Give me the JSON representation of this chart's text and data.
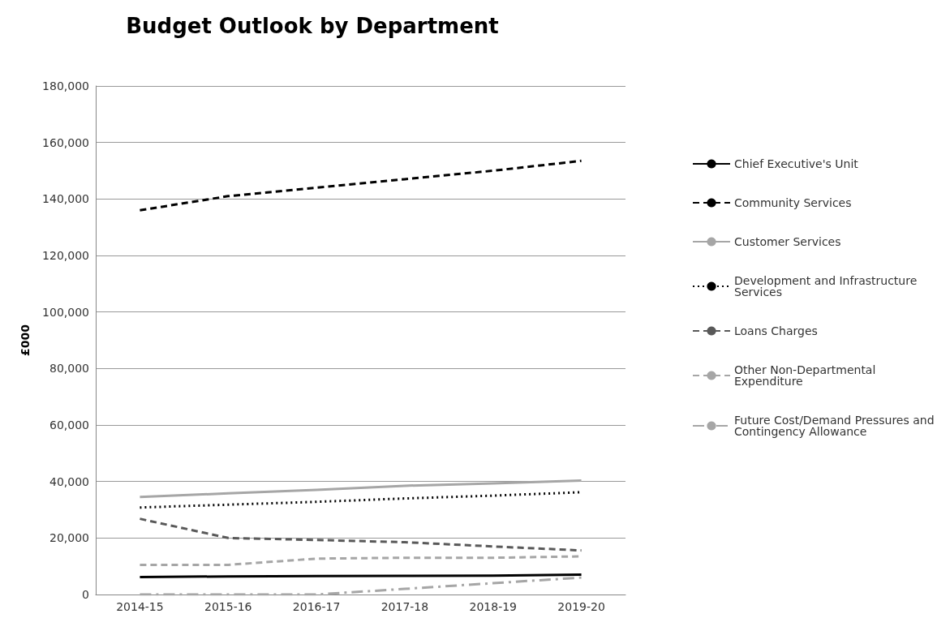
{
  "chart_data": {
    "type": "line",
    "title": "Budget Outlook by Department",
    "ylabel": "£000",
    "categories": [
      "2014-15",
      "2015-16",
      "2016-17",
      "2017-18",
      "2018-19",
      "2019-20"
    ],
    "series": [
      {
        "name": "Chief Executive's Unit",
        "color": "#000000",
        "line_style": "solid",
        "values": [
          6200,
          6400,
          6500,
          6600,
          6700,
          7000
        ]
      },
      {
        "name": "Community Services",
        "color": "#000000",
        "line_style": "dashed",
        "values": [
          136000,
          141000,
          144000,
          147000,
          150000,
          153500
        ]
      },
      {
        "name": "Customer Services",
        "color": "#a6a6a6",
        "line_style": "solid",
        "values": [
          34500,
          35800,
          37000,
          38500,
          39300,
          40300
        ]
      },
      {
        "name": "Development and Infrastructure Services",
        "color": "#000000",
        "line_style": "dotted",
        "values": [
          30800,
          31800,
          32800,
          34000,
          35000,
          36200
        ]
      },
      {
        "name": "Loans Charges",
        "color": "#595959",
        "line_style": "dashed",
        "values": [
          26800,
          20000,
          19300,
          18500,
          17000,
          15600
        ]
      },
      {
        "name": "Other Non-Departmental Expenditure",
        "color": "#a6a6a6",
        "line_style": "dashed",
        "values": [
          10500,
          10500,
          12700,
          13000,
          13000,
          13500
        ]
      },
      {
        "name": "Future Cost/Demand Pressures and Contingency Allowance",
        "color": "#a6a6a6",
        "line_style": "dashdot",
        "values": [
          0,
          0,
          0,
          2000,
          4000,
          6000
        ]
      }
    ],
    "ylim": [
      0,
      180000
    ],
    "yticks": [
      0,
      {
        "value": 20000,
        "label": "20,000"
      },
      {
        "value": 40000,
        "label": "40,000"
      },
      {
        "value": 60000,
        "label": "60,000"
      },
      {
        "value": 80000,
        "label": "80,000"
      },
      {
        "value": 100000,
        "label": "100,000"
      },
      {
        "value": 120000,
        "label": "120,000"
      },
      {
        "value": 140000,
        "label": "140,000"
      },
      {
        "value": 160000,
        "label": "160,000"
      },
      {
        "value": 180000,
        "label": "180,000"
      }
    ],
    "grid": "y",
    "legend": "right",
    "marker": "none"
  }
}
